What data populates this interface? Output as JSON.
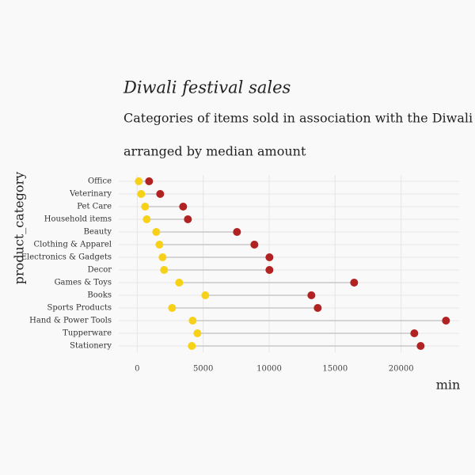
{
  "chart_data": {
    "type": "dumbbell",
    "title": "Diwali festival sales",
    "subtitle": "Categories of items sold in association with the Diwali Festival",
    "subtitle2": "arranged by median amount",
    "x_label": "min",
    "y_label": "product_category",
    "categories": [
      "Office",
      "Veterinary",
      "Pet Care",
      "Household items",
      "Beauty",
      "Clothing & Apparel",
      "Electronics & Gadgets",
      "Decor",
      "Games & Toys",
      "Books",
      "Sports Products",
      "Hand & Power Tools",
      "Tupperware",
      "Stationery"
    ],
    "series": [
      {
        "color": "#f7d117",
        "values": [
          120,
          300,
          600,
          720,
          1440,
          1680,
          1920,
          2040,
          3180,
          5160,
          2640,
          4200,
          4560,
          4140
        ]
      },
      {
        "color": "#b22222",
        "values": [
          900,
          1740,
          3480,
          3840,
          7560,
          8880,
          10020,
          10020,
          16440,
          13200,
          13680,
          23400,
          21000,
          21480
        ]
      }
    ],
    "segment_color": "#c8c8c8",
    "xlim": [
      -1400,
      24400
    ],
    "xticks": [
      0,
      5000,
      10000,
      15000,
      20000
    ],
    "grid": true
  }
}
